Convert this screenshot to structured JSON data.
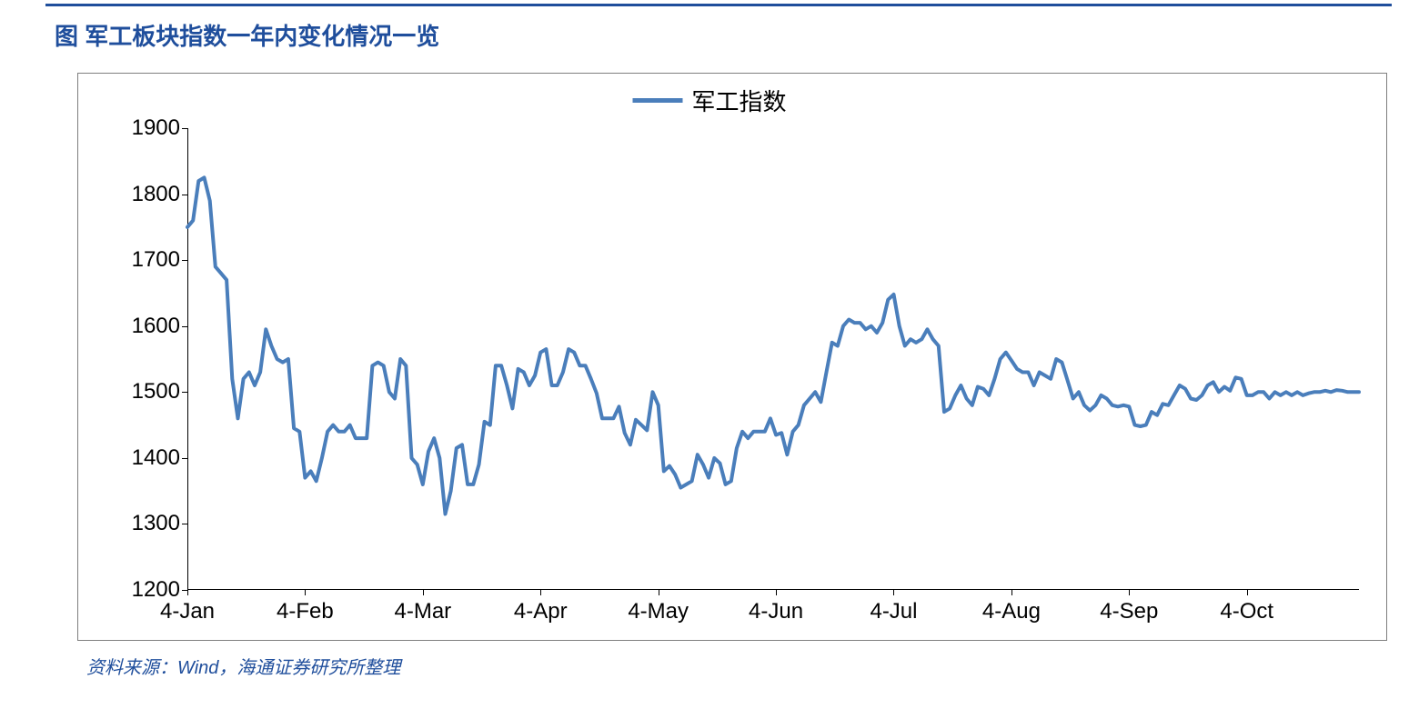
{
  "title": "图 军工板块指数一年内变化情况一览",
  "source": "资料来源：Wind，海通证券研究所整理",
  "chart": {
    "type": "line",
    "legend_label": "军工指数",
    "line_color": "#4a7ebb",
    "line_width": 4,
    "title_color": "#1f4e9c",
    "title_fontsize": 26,
    "frame_border_color": "#7f7f7f",
    "background_color": "#ffffff",
    "tick_label_fontsize": 24,
    "tick_label_color": "#000000",
    "legend_fontsize": 26,
    "source_color": "#1f4e9c",
    "source_fontsize": 20,
    "ylim": [
      1200,
      1900
    ],
    "yticks": [
      1200,
      1300,
      1400,
      1500,
      1600,
      1700,
      1800,
      1900
    ],
    "xticks": [
      "4-Jan",
      "4-Feb",
      "4-Mar",
      "4-Apr",
      "4-May",
      "4-Jun",
      "4-Jul",
      "4-Aug",
      "4-Sep",
      "4-Oct"
    ],
    "x_count": 210,
    "x_first_tick_index": 0,
    "x_tick_step": 21,
    "values": [
      1750,
      1760,
      1820,
      1825,
      1790,
      1690,
      1680,
      1670,
      1520,
      1460,
      1520,
      1530,
      1510,
      1530,
      1595,
      1570,
      1550,
      1545,
      1550,
      1445,
      1440,
      1370,
      1380,
      1365,
      1400,
      1440,
      1450,
      1440,
      1440,
      1450,
      1430,
      1430,
      1430,
      1540,
      1545,
      1540,
      1500,
      1490,
      1550,
      1540,
      1400,
      1390,
      1360,
      1410,
      1430,
      1400,
      1315,
      1350,
      1415,
      1420,
      1360,
      1360,
      1390,
      1455,
      1450,
      1540,
      1540,
      1510,
      1475,
      1535,
      1530,
      1510,
      1525,
      1560,
      1565,
      1510,
      1510,
      1530,
      1565,
      1560,
      1540,
      1540,
      1520,
      1498,
      1460,
      1460,
      1460,
      1478,
      1438,
      1420,
      1458,
      1450,
      1442,
      1500,
      1480,
      1380,
      1388,
      1375,
      1355,
      1360,
      1365,
      1405,
      1390,
      1370,
      1400,
      1392,
      1360,
      1365,
      1415,
      1440,
      1430,
      1440,
      1440,
      1440,
      1460,
      1435,
      1438,
      1405,
      1440,
      1450,
      1480,
      1490,
      1500,
      1485,
      1530,
      1575,
      1570,
      1600,
      1610,
      1605,
      1605,
      1595,
      1600,
      1590,
      1605,
      1640,
      1648,
      1600,
      1570,
      1580,
      1575,
      1580,
      1595,
      1580,
      1570,
      1470,
      1475,
      1495,
      1510,
      1490,
      1480,
      1508,
      1505,
      1495,
      1520,
      1550,
      1560,
      1548,
      1535,
      1530,
      1530,
      1510,
      1530,
      1525,
      1520,
      1550,
      1545,
      1518,
      1490,
      1500,
      1480,
      1472,
      1480,
      1495,
      1490,
      1480,
      1478,
      1480,
      1478,
      1450,
      1448,
      1450,
      1470,
      1465,
      1482,
      1480,
      1495,
      1510,
      1505,
      1490,
      1488,
      1495,
      1510,
      1515,
      1500,
      1508,
      1502,
      1522,
      1520,
      1495,
      1495,
      1500,
      1500,
      1490,
      1500,
      1495,
      1500,
      1495,
      1500,
      1495,
      1498,
      1500,
      1500,
      1502,
      1500,
      1503,
      1502,
      1500,
      1500,
      1500
    ]
  }
}
